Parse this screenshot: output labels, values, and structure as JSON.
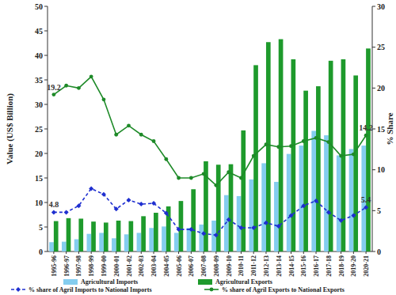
{
  "chart_data": {
    "type": "bar",
    "y_label": "Value (US$ Billion)",
    "y2_label": "% Share",
    "categories": [
      "1995-96",
      "1996-97",
      "1997-98",
      "1998-99",
      "1999-00",
      "2000-01",
      "2001-02",
      "2002-03",
      "2003-04",
      "2004-05",
      "2005-06",
      "2006-07",
      "2007-08",
      "2008-09",
      "2009-10",
      "2010-11",
      "2011-12",
      "2012-13",
      "2013-14",
      "2014-15",
      "2015-16",
      "2016-17",
      "2017-18",
      "2018-19",
      "2019-20",
      "2020-21"
    ],
    "ylim": [
      0,
      50
    ],
    "yticks": [
      0,
      5,
      10,
      15,
      20,
      25,
      30,
      35,
      40,
      45,
      50
    ],
    "y2lim": [
      0,
      30
    ],
    "y2ticks": [
      0,
      5,
      10,
      15,
      20,
      25,
      30
    ],
    "legend": "bottom",
    "series": [
      {
        "name": "Agricultural Imports",
        "type": "bar",
        "color": "#84cdef",
        "values": [
          1.9,
          2.0,
          2.5,
          3.6,
          3.8,
          2.7,
          3.5,
          3.8,
          4.8,
          5.1,
          3.8,
          4.8,
          5.5,
          6.3,
          11.5,
          11.3,
          14.7,
          18.0,
          14.2,
          19.9,
          21.6,
          24.6,
          23.7,
          19.6,
          20.9,
          21.6
        ]
      },
      {
        "name": "Agricultural Exports",
        "type": "bar",
        "color": "#1e9a2c",
        "values": [
          6.2,
          6.8,
          6.7,
          6.1,
          5.9,
          6.3,
          6.2,
          7.2,
          7.9,
          9.2,
          10.3,
          12.7,
          18.4,
          17.7,
          17.8,
          24.7,
          38.0,
          42.7,
          43.3,
          39.2,
          32.8,
          33.7,
          38.9,
          39.2,
          35.9,
          41.4
        ]
      },
      {
        "name": "% share of Agril Imports to National Imports",
        "type": "line",
        "axis": "y2",
        "color": "#1f2fd0",
        "marker": "diamond",
        "line_style": "dashed",
        "values": [
          4.8,
          4.8,
          5.6,
          7.7,
          7.0,
          5.2,
          6.3,
          5.8,
          5.9,
          4.7,
          2.7,
          2.7,
          2.2,
          2.0,
          3.9,
          2.9,
          2.9,
          3.5,
          3.1,
          4.4,
          5.6,
          6.2,
          4.8,
          3.8,
          4.4,
          5.4
        ],
        "value_labels": [
          "4.8",
          null,
          null,
          null,
          null,
          null,
          null,
          null,
          null,
          null,
          null,
          null,
          null,
          null,
          null,
          null,
          null,
          null,
          null,
          null,
          null,
          null,
          null,
          null,
          null,
          "5.4"
        ]
      },
      {
        "name": "% share of Agril Exports to National Exports",
        "type": "line",
        "axis": "y2",
        "color": "#1e8a28",
        "marker": "circle",
        "line_style": "solid",
        "values": [
          19.2,
          20.3,
          20.0,
          21.4,
          18.6,
          14.3,
          15.4,
          14.3,
          13.5,
          11.3,
          9.0,
          9.0,
          9.5,
          8.1,
          9.7,
          9.0,
          11.7,
          13.1,
          12.8,
          12.9,
          13.5,
          13.9,
          13.4,
          11.7,
          11.9,
          14.2
        ],
        "value_labels": [
          "19.2",
          null,
          null,
          null,
          null,
          null,
          null,
          null,
          null,
          null,
          null,
          null,
          null,
          null,
          null,
          null,
          null,
          null,
          null,
          null,
          null,
          null,
          null,
          null,
          null,
          "14.2"
        ]
      }
    ]
  }
}
